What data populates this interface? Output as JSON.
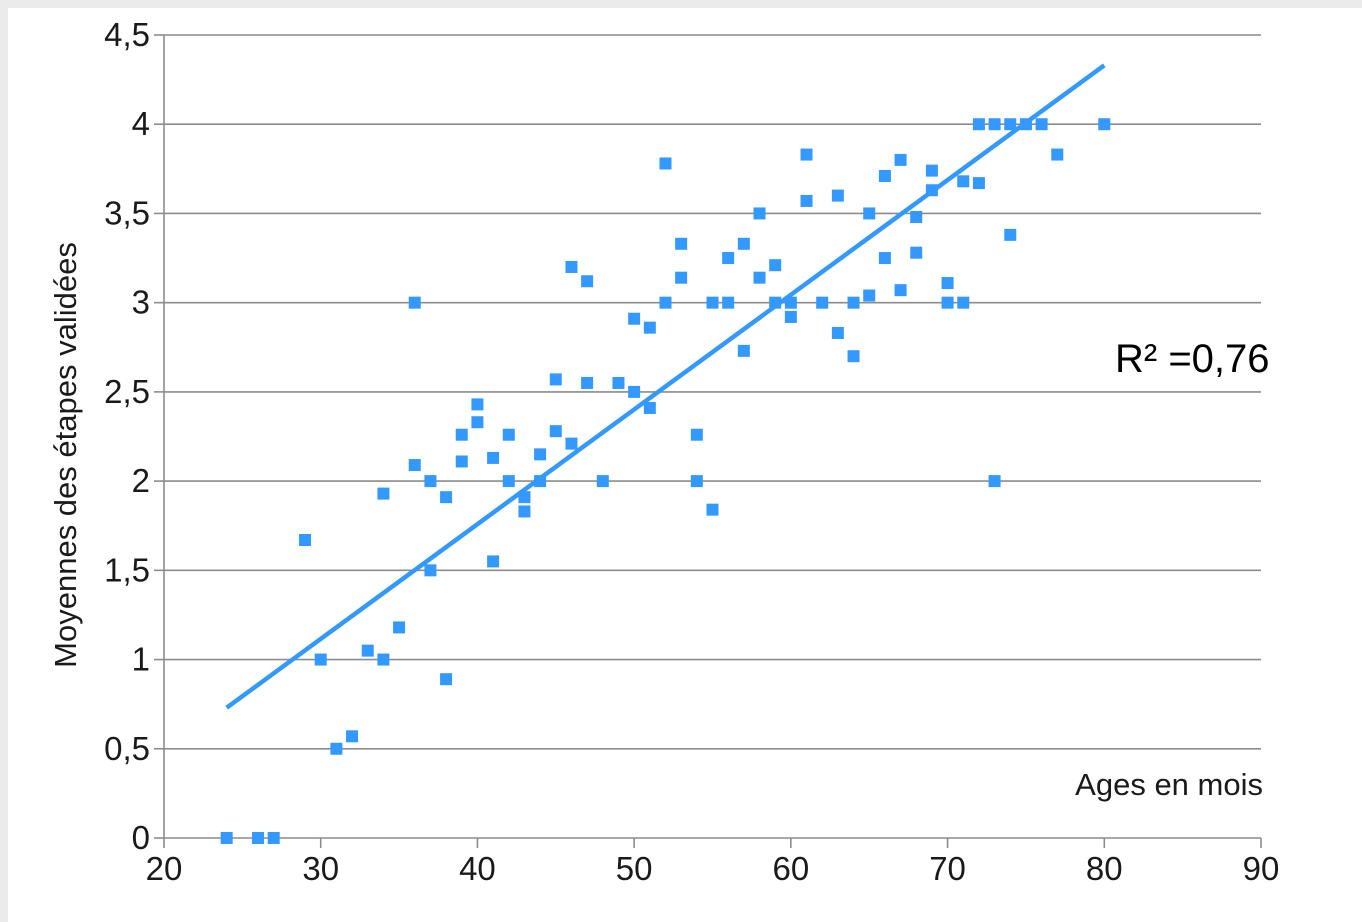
{
  "chart_data": {
    "type": "scatter",
    "title": "",
    "xlabel": "Ages en mois",
    "ylabel": "Moyennes des étapes validées",
    "xlim": [
      20,
      90
    ],
    "ylim": [
      0,
      4.5
    ],
    "x_ticks": [
      "20",
      "30",
      "40",
      "50",
      "60",
      "70",
      "80",
      "90"
    ],
    "y_ticks": [
      "0",
      "0,5",
      "1",
      "1,5",
      "2",
      "2,5",
      "3",
      "3,5",
      "4",
      "4,5"
    ],
    "grid": "horizontal",
    "legend": "none",
    "annotation": "R² =0,76",
    "colors": {
      "points": "#3399ff",
      "trendline": "#3399ff",
      "gridlines": "#8c8c8c",
      "axis": "#8c8c8c"
    },
    "trendline": {
      "type": "linear",
      "from": {
        "x": 24,
        "y": 0.73
      },
      "to": {
        "x": 80,
        "y": 4.33
      }
    },
    "series": [
      {
        "points": [
          [
            24,
            0
          ],
          [
            26,
            0
          ],
          [
            27,
            0
          ],
          [
            29,
            1.67
          ],
          [
            30,
            1
          ],
          [
            31,
            0.5
          ],
          [
            32,
            0.57
          ],
          [
            33,
            1.05
          ],
          [
            34,
            1.0
          ],
          [
            34,
            1.93
          ],
          [
            35,
            1.18
          ],
          [
            36,
            3.0
          ],
          [
            36,
            2.09
          ],
          [
            37,
            2.0
          ],
          [
            37,
            1.5
          ],
          [
            38,
            1.91
          ],
          [
            38,
            0.89
          ],
          [
            39,
            2.26
          ],
          [
            39,
            2.11
          ],
          [
            40,
            2.43
          ],
          [
            40,
            2.33
          ],
          [
            41,
            2.13
          ],
          [
            41,
            1.55
          ],
          [
            42,
            2.26
          ],
          [
            42,
            2.0
          ],
          [
            43,
            1.91
          ],
          [
            43,
            1.83
          ],
          [
            44,
            2.15
          ],
          [
            44,
            2.0
          ],
          [
            45,
            2.57
          ],
          [
            45,
            2.28
          ],
          [
            46,
            3.2
          ],
          [
            46,
            2.21
          ],
          [
            47,
            3.12
          ],
          [
            47,
            2.55
          ],
          [
            48,
            2.0
          ],
          [
            49,
            2.55
          ],
          [
            50,
            2.91
          ],
          [
            50,
            2.5
          ],
          [
            51,
            2.86
          ],
          [
            51,
            2.41
          ],
          [
            52,
            3.78
          ],
          [
            52,
            3.0
          ],
          [
            53,
            3.33
          ],
          [
            53,
            3.14
          ],
          [
            54,
            2.26
          ],
          [
            54,
            2.0
          ],
          [
            55,
            3.0
          ],
          [
            55,
            1.84
          ],
          [
            56,
            3.25
          ],
          [
            56,
            3.0
          ],
          [
            57,
            3.33
          ],
          [
            57,
            2.73
          ],
          [
            58,
            3.5
          ],
          [
            58,
            3.14
          ],
          [
            59,
            3.21
          ],
          [
            59,
            3.0
          ],
          [
            60,
            3.0
          ],
          [
            60,
            2.92
          ],
          [
            61,
            3.83
          ],
          [
            61,
            3.57
          ],
          [
            62,
            3.0
          ],
          [
            63,
            3.6
          ],
          [
            63,
            2.83
          ],
          [
            64,
            3.0
          ],
          [
            64,
            2.7
          ],
          [
            65,
            3.5
          ],
          [
            65,
            3.04
          ],
          [
            66,
            3.71
          ],
          [
            66,
            3.25
          ],
          [
            67,
            3.8
          ],
          [
            67,
            3.07
          ],
          [
            68,
            3.48
          ],
          [
            68,
            3.28
          ],
          [
            69,
            3.74
          ],
          [
            69,
            3.63
          ],
          [
            70,
            3.11
          ],
          [
            70,
            3.0
          ],
          [
            71,
            3.68
          ],
          [
            71,
            3.0
          ],
          [
            72,
            4.0
          ],
          [
            72,
            3.67
          ],
          [
            73,
            4.0
          ],
          [
            73,
            2.0
          ],
          [
            74,
            4.0
          ],
          [
            74,
            3.38
          ],
          [
            75,
            4.0
          ],
          [
            76,
            4.0
          ],
          [
            77,
            3.83
          ],
          [
            80,
            4.0
          ]
        ]
      }
    ]
  }
}
